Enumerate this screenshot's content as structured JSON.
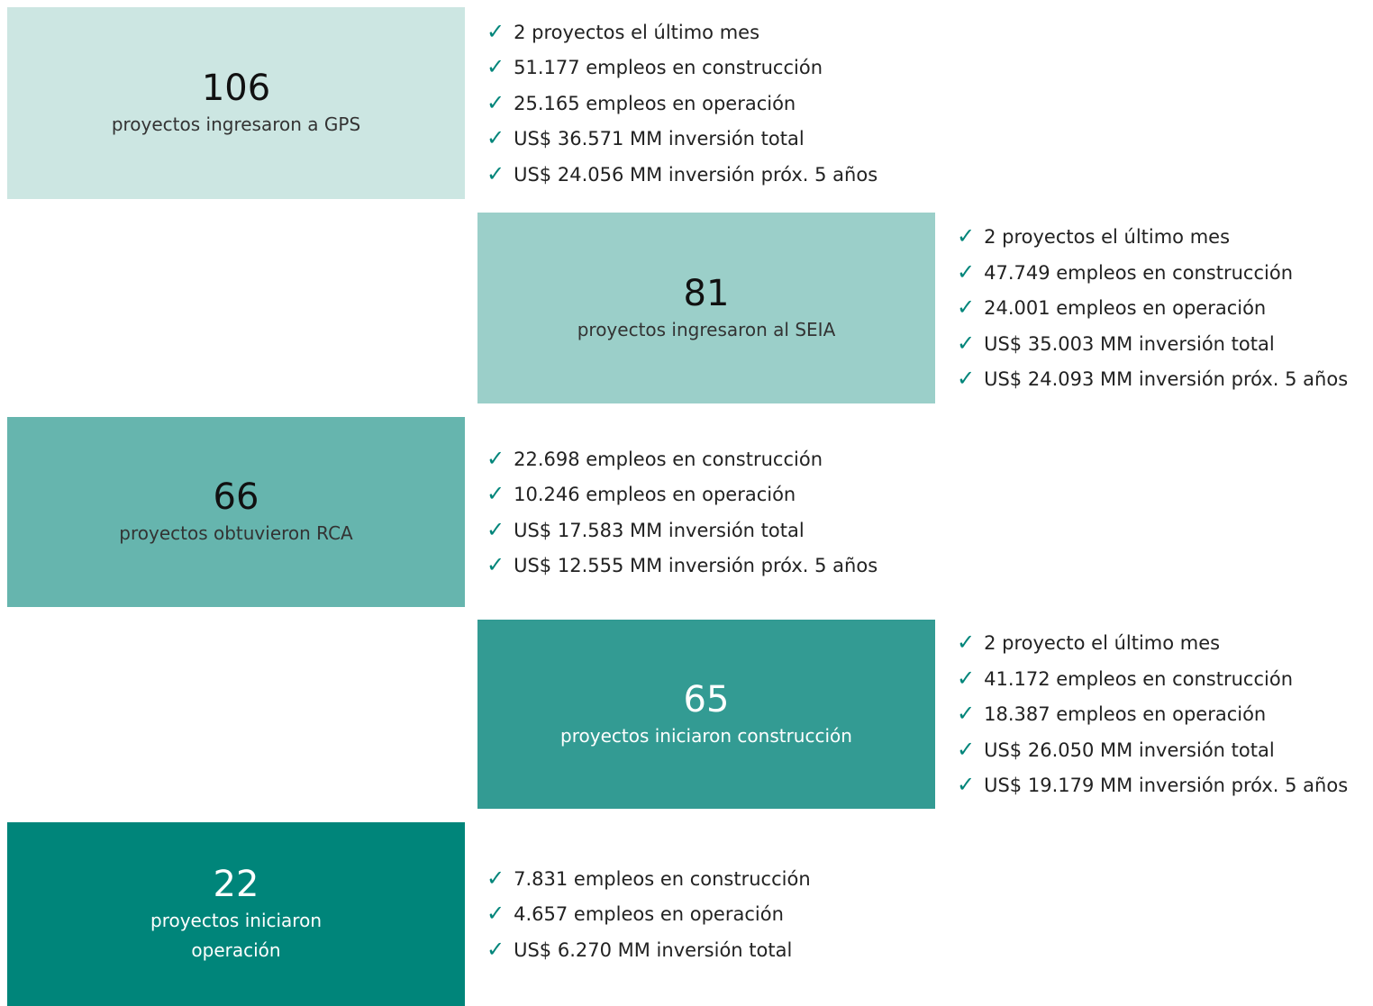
{
  "blocks": [
    {
      "number": "106",
      "label": "proyectos ingresaron a GPS",
      "items": [
        "2 proyectos el último mes",
        "51.177 empleos en construcción",
        "25.165 empleos en operación",
        "US$ 36.571 MM inversión total",
        "US$ 24.056 MM inversión próx. 5 años"
      ]
    },
    {
      "number": "81",
      "label": "proyectos ingresaron al SEIA",
      "items": [
        "2 proyectos el último mes",
        "47.749 empleos en construcción",
        "24.001 empleos en operación",
        "US$ 35.003 MM inversión total",
        "US$ 24.093 MM inversión próx. 5 años"
      ]
    },
    {
      "number": "66",
      "label": "proyectos obtuvieron RCA",
      "items": [
        "22.698 empleos en construcción",
        "10.246 empleos en operación",
        "US$ 17.583 MM inversión total",
        "US$ 12.555 MM inversión próx. 5 años"
      ]
    },
    {
      "number": "65",
      "label": "proyectos iniciaron construcción",
      "items": [
        "2 proyecto el último mes",
        "41.172 empleos en construcción",
        "18.387 empleos en operación",
        "US$ 26.050 MM inversión total",
        "US$ 19.179 MM inversión próx. 5 años"
      ]
    },
    {
      "number": "22",
      "label": "proyectos iniciaron operación",
      "items": [
        "7.831 empleos en construcción",
        "4.657 empleos en operación",
        "US$ 6.270 MM inversión total"
      ]
    }
  ]
}
